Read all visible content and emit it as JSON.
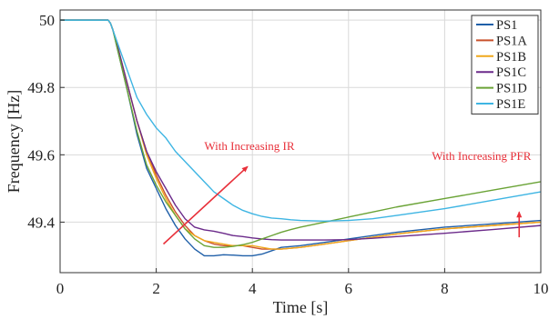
{
  "chart_data": {
    "type": "line",
    "xlabel": "Time [s]",
    "ylabel": "Frequency [Hz]",
    "xlim": [
      0,
      10
    ],
    "ylim": [
      49.25,
      50.03
    ],
    "xticks": [
      0,
      2,
      4,
      6,
      8,
      10
    ],
    "xtick_labels": [
      "0",
      "2",
      "4",
      "6",
      "8",
      "10"
    ],
    "yticks": [
      49.4,
      49.6,
      49.8,
      50
    ],
    "ytick_labels": [
      "49.4",
      "49.6",
      "49.8",
      "50"
    ],
    "grid": true,
    "legend_position": "top-right",
    "annotations": [
      {
        "text": "With Increasing IR",
        "color": "#e8303a",
        "anchor_x": 3.0,
        "anchor_y": 49.615
      },
      {
        "text": "With Increasing PFR",
        "color": "#e8303a",
        "anchor_x": 9.8,
        "anchor_y": 49.585
      }
    ],
    "arrows": [
      {
        "from": [
          2.15,
          49.335
        ],
        "to": [
          3.9,
          49.565
        ],
        "color": "#e8303a"
      },
      {
        "from": [
          9.55,
          49.355
        ],
        "to": [
          9.55,
          49.43
        ],
        "color": "#e8303a"
      }
    ],
    "series": [
      {
        "name": "PS1",
        "color": "#1f5fa8",
        "x": [
          0,
          1,
          1.05,
          1.1,
          1.2,
          1.4,
          1.6,
          1.8,
          2.0,
          2.2,
          2.4,
          2.6,
          2.8,
          3.0,
          3.2,
          3.4,
          3.6,
          3.8,
          4.0,
          4.2,
          4.4,
          4.6,
          5,
          5.5,
          6,
          6.5,
          7,
          8,
          9,
          10
        ],
        "y": [
          50,
          50,
          49.99,
          49.97,
          49.91,
          49.79,
          49.66,
          49.56,
          49.5,
          49.44,
          49.39,
          49.35,
          49.32,
          49.3,
          49.3,
          49.303,
          49.302,
          49.3,
          49.3,
          49.305,
          49.315,
          49.325,
          49.33,
          49.34,
          49.35,
          49.36,
          49.37,
          49.385,
          49.395,
          49.405
        ]
      },
      {
        "name": "PS1A",
        "color": "#c9512b",
        "x": [
          0,
          1,
          1.05,
          1.1,
          1.2,
          1.4,
          1.6,
          1.8,
          2.0,
          2.2,
          2.4,
          2.6,
          2.8,
          3.0,
          3.2,
          3.4,
          3.6,
          3.8,
          4.0,
          4.2,
          4.4,
          4.6,
          5,
          5.5,
          6,
          6.5,
          7,
          8,
          9,
          10
        ],
        "y": [
          50,
          50,
          49.99,
          49.97,
          49.92,
          49.81,
          49.7,
          49.61,
          49.54,
          49.48,
          49.43,
          49.39,
          49.36,
          49.345,
          49.335,
          49.33,
          49.33,
          49.33,
          49.325,
          49.32,
          49.32,
          49.32,
          49.325,
          49.335,
          49.345,
          49.355,
          49.365,
          49.38,
          49.39,
          49.4
        ]
      },
      {
        "name": "PS1B",
        "color": "#f0a81c",
        "x": [
          0,
          1,
          1.05,
          1.1,
          1.2,
          1.4,
          1.6,
          1.8,
          2.0,
          2.2,
          2.4,
          2.6,
          2.8,
          3.0,
          3.2,
          3.4,
          3.6,
          3.8,
          4.0,
          4.2,
          4.4,
          4.6,
          5,
          5.5,
          6,
          6.5,
          7,
          8,
          9,
          10
        ],
        "y": [
          50,
          50,
          49.99,
          49.97,
          49.92,
          49.81,
          49.7,
          49.6,
          49.53,
          49.47,
          49.42,
          49.38,
          49.36,
          49.345,
          49.34,
          49.335,
          49.33,
          49.33,
          49.33,
          49.325,
          49.32,
          49.32,
          49.325,
          49.335,
          49.345,
          49.355,
          49.365,
          49.38,
          49.39,
          49.4
        ]
      },
      {
        "name": "PS1C",
        "color": "#6b2a8a",
        "x": [
          0,
          1,
          1.05,
          1.1,
          1.2,
          1.4,
          1.6,
          1.8,
          2.0,
          2.2,
          2.4,
          2.6,
          2.8,
          3.0,
          3.2,
          3.4,
          3.6,
          3.8,
          4.0,
          4.2,
          4.4,
          4.6,
          5,
          5.5,
          6,
          6.5,
          7,
          8,
          9,
          10
        ],
        "y": [
          50,
          50,
          49.99,
          49.97,
          49.92,
          49.81,
          49.7,
          49.61,
          49.55,
          49.5,
          49.45,
          49.41,
          49.385,
          49.377,
          49.373,
          49.367,
          49.36,
          49.357,
          49.353,
          49.35,
          49.348,
          49.347,
          49.347,
          49.347,
          49.348,
          49.352,
          49.357,
          49.367,
          49.378,
          49.39
        ]
      },
      {
        "name": "PS1D",
        "color": "#6aa336",
        "x": [
          0,
          1,
          1.05,
          1.1,
          1.2,
          1.4,
          1.6,
          1.8,
          2.0,
          2.2,
          2.4,
          2.6,
          2.8,
          3.0,
          3.2,
          3.4,
          3.6,
          3.8,
          4.0,
          4.2,
          4.4,
          4.6,
          4.8,
          5,
          5.5,
          6,
          6.5,
          7,
          8,
          9,
          10
        ],
        "y": [
          50,
          50,
          49.99,
          49.97,
          49.91,
          49.79,
          49.67,
          49.57,
          49.51,
          49.46,
          49.42,
          49.38,
          49.35,
          49.33,
          49.325,
          49.325,
          49.328,
          49.333,
          49.34,
          49.35,
          49.36,
          49.37,
          49.378,
          49.385,
          49.4,
          49.415,
          49.43,
          49.445,
          49.47,
          49.495,
          49.52
        ]
      },
      {
        "name": "PS1E",
        "color": "#3eb5e3",
        "x": [
          0,
          1,
          1.05,
          1.1,
          1.2,
          1.4,
          1.6,
          1.8,
          2.0,
          2.2,
          2.4,
          2.6,
          2.8,
          3.0,
          3.2,
          3.4,
          3.6,
          3.8,
          4.0,
          4.2,
          4.4,
          4.6,
          4.8,
          5,
          5.5,
          6,
          6.5,
          7,
          8,
          9,
          10
        ],
        "y": [
          50,
          50,
          49.99,
          49.97,
          49.93,
          49.85,
          49.77,
          49.72,
          49.68,
          49.65,
          49.61,
          49.58,
          49.55,
          49.52,
          49.49,
          49.47,
          49.45,
          49.435,
          49.425,
          49.417,
          49.412,
          49.41,
          49.407,
          49.405,
          49.403,
          49.405,
          49.41,
          49.42,
          49.44,
          49.465,
          49.49
        ]
      }
    ]
  }
}
